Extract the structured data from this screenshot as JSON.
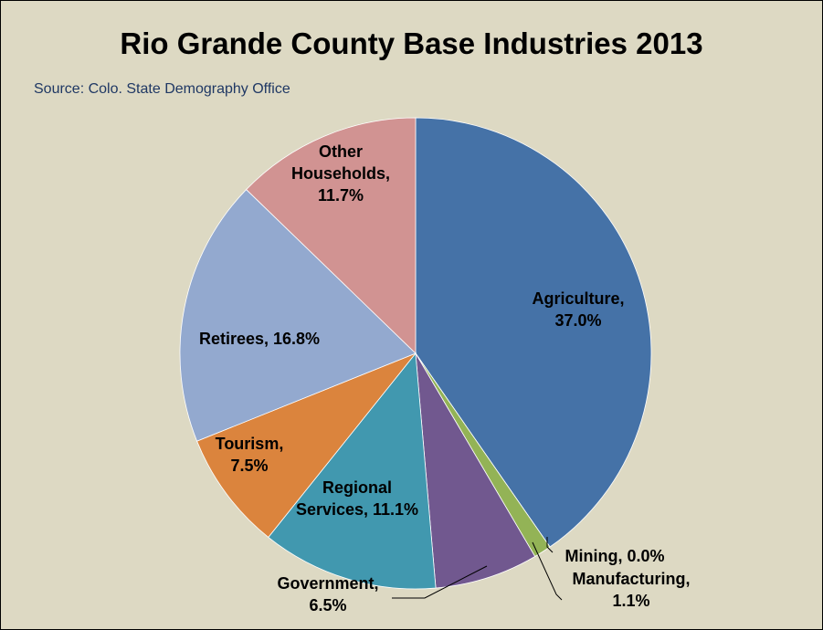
{
  "chart_data": {
    "type": "pie",
    "title": "Rio Grande County Base Industries 2013",
    "subtitle": "Source: Colo. State Demography Office",
    "slices": [
      {
        "label": "Agriculture",
        "label_lines": [
          "Agriculture,",
          "37.0%"
        ],
        "value": 37.0,
        "color": "#4572a7"
      },
      {
        "label": "Mining",
        "label_lines": [
          "Mining, 0.0%"
        ],
        "value": 0.0,
        "color": "#93b356"
      },
      {
        "label": "Manufacturing",
        "label_lines": [
          "Manufacturing,",
          "1.1%"
        ],
        "value": 1.1,
        "color": "#93b356"
      },
      {
        "label": "Government",
        "label_lines": [
          "Government,",
          "6.5%"
        ],
        "value": 6.5,
        "color": "#71588f"
      },
      {
        "label": "Regional Services",
        "label_lines": [
          "Regional",
          "Services, 11.1%"
        ],
        "value": 11.1,
        "color": "#4198af"
      },
      {
        "label": "Tourism",
        "label_lines": [
          "Tourism,",
          "7.5%"
        ],
        "value": 7.5,
        "color": "#db843d"
      },
      {
        "label": "Retirees",
        "label_lines": [
          "Retirees, 16.8%"
        ],
        "value": 16.8,
        "color": "#93a9cf"
      },
      {
        "label": "Other Households",
        "label_lines": [
          "Other",
          "Households,",
          "11.7%"
        ],
        "value": 11.7,
        "color": "#d19392"
      }
    ]
  }
}
